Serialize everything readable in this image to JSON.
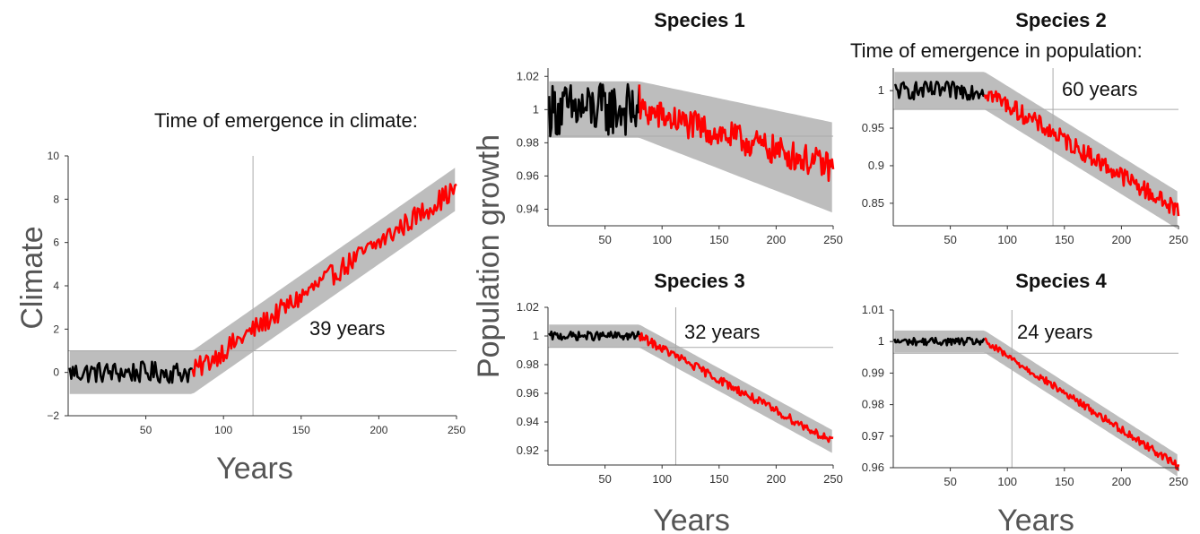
{
  "chart_data": [
    {
      "type": "line",
      "panel": "climate",
      "title": "",
      "annotation": "Time of emergence in climate:",
      "emergence_label": "39 years",
      "ylabel": "Climate",
      "xlabel": "Years",
      "xlim": [
        0,
        250
      ],
      "ylim": [
        -2,
        10
      ],
      "xticks": [
        50,
        100,
        150,
        200,
        250
      ],
      "yticks": [
        -2,
        0,
        2,
        4,
        6,
        8,
        10
      ],
      "ytick_labels": [
        "−2",
        "0",
        "2",
        "4",
        "6",
        "8",
        "10"
      ],
      "emergence_x": 119,
      "threshold_y": 1.0,
      "change_start": 80,
      "baseline": 0,
      "end_value": 8.5,
      "band_halfwidth": 1.0,
      "noise": 0.5,
      "series": [
        {
          "segment": "baseline",
          "x_range": [
            1,
            80
          ],
          "color": "#000000"
        },
        {
          "segment": "changing",
          "x_range": [
            80,
            250
          ],
          "color": "#ff0000"
        }
      ],
      "colors": {
        "baseline": "#000000",
        "changing": "#ff0000",
        "band": "#bdbdbd",
        "ref": "#aaaaaa"
      }
    },
    {
      "type": "line",
      "panel": "species-1",
      "title": "Species 1",
      "emergence_label": "",
      "ylabel": "Population growth",
      "xlim": [
        0,
        250
      ],
      "ylim": [
        0.93,
        1.025
      ],
      "xticks": [
        50,
        100,
        150,
        200,
        250
      ],
      "yticks": [
        0.94,
        0.96,
        0.98,
        1,
        1.02
      ],
      "ytick_labels": [
        "0.94",
        "0.96",
        "0.98",
        "1",
        "1.02"
      ],
      "threshold_y": 0.984,
      "change_start": 80,
      "baseline": 1.0,
      "end_value": 0.965,
      "band_halfwidth": 0.017,
      "noise": 0.009,
      "series": [
        {
          "segment": "baseline",
          "x_range": [
            1,
            80
          ],
          "color": "#000000"
        },
        {
          "segment": "changing",
          "x_range": [
            80,
            250
          ],
          "color": "#ff0000"
        }
      ]
    },
    {
      "type": "line",
      "panel": "species-2",
      "title": "Species 2",
      "annotation": "Time of emergence in population:",
      "emergence_label": "60 years",
      "xlim": [
        0,
        250
      ],
      "ylim": [
        0.82,
        1.03
      ],
      "xticks": [
        50,
        100,
        150,
        200,
        250
      ],
      "yticks": [
        0.85,
        0.9,
        0.95,
        1
      ],
      "ytick_labels": [
        "0.85",
        "0.9",
        "0.95",
        "1"
      ],
      "emergence_x": 140,
      "threshold_y": 0.975,
      "change_start": 80,
      "baseline": 1.0,
      "end_value": 0.84,
      "band_halfwidth": 0.025,
      "noise": 0.012,
      "series": [
        {
          "segment": "baseline",
          "x_range": [
            1,
            80
          ],
          "color": "#000000"
        },
        {
          "segment": "changing",
          "x_range": [
            80,
            250
          ],
          "color": "#ff0000"
        }
      ]
    },
    {
      "type": "line",
      "panel": "species-3",
      "title": "Species 3",
      "emergence_label": "32 years",
      "xlabel": "Years",
      "xlim": [
        0,
        250
      ],
      "ylim": [
        0.91,
        1.02
      ],
      "xticks": [
        50,
        100,
        150,
        200,
        250
      ],
      "yticks": [
        0.92,
        0.94,
        0.96,
        0.98,
        1,
        1.02
      ],
      "ytick_labels": [
        "0.92",
        "0.94",
        "0.96",
        "0.98",
        "1",
        "1.02"
      ],
      "emergence_x": 112,
      "threshold_y": 0.992,
      "change_start": 80,
      "baseline": 1.0,
      "end_value": 0.926,
      "band_halfwidth": 0.008,
      "noise": 0.003,
      "series": [
        {
          "segment": "baseline",
          "x_range": [
            1,
            80
          ],
          "color": "#000000"
        },
        {
          "segment": "changing",
          "x_range": [
            80,
            250
          ],
          "color": "#ff0000"
        }
      ]
    },
    {
      "type": "line",
      "panel": "species-4",
      "title": "Species 4",
      "emergence_label": "24 years",
      "xlabel": "Years",
      "xlim": [
        0,
        250
      ],
      "ylim": [
        0.96,
        1.01
      ],
      "xticks": [
        50,
        100,
        150,
        200,
        250
      ],
      "yticks": [
        0.96,
        0.97,
        0.98,
        0.99,
        1,
        1.01
      ],
      "ytick_labels": [
        "0.96",
        "0.97",
        "0.98",
        "0.99",
        "1",
        "1.01"
      ],
      "emergence_x": 104,
      "threshold_y": 0.9963,
      "change_start": 80,
      "baseline": 1.0,
      "end_value": 0.9605,
      "band_halfwidth": 0.0035,
      "noise": 0.0012,
      "series": [
        {
          "segment": "baseline",
          "x_range": [
            1,
            80
          ],
          "color": "#000000"
        },
        {
          "segment": "changing",
          "x_range": [
            80,
            250
          ],
          "color": "#ff0000"
        }
      ]
    }
  ]
}
